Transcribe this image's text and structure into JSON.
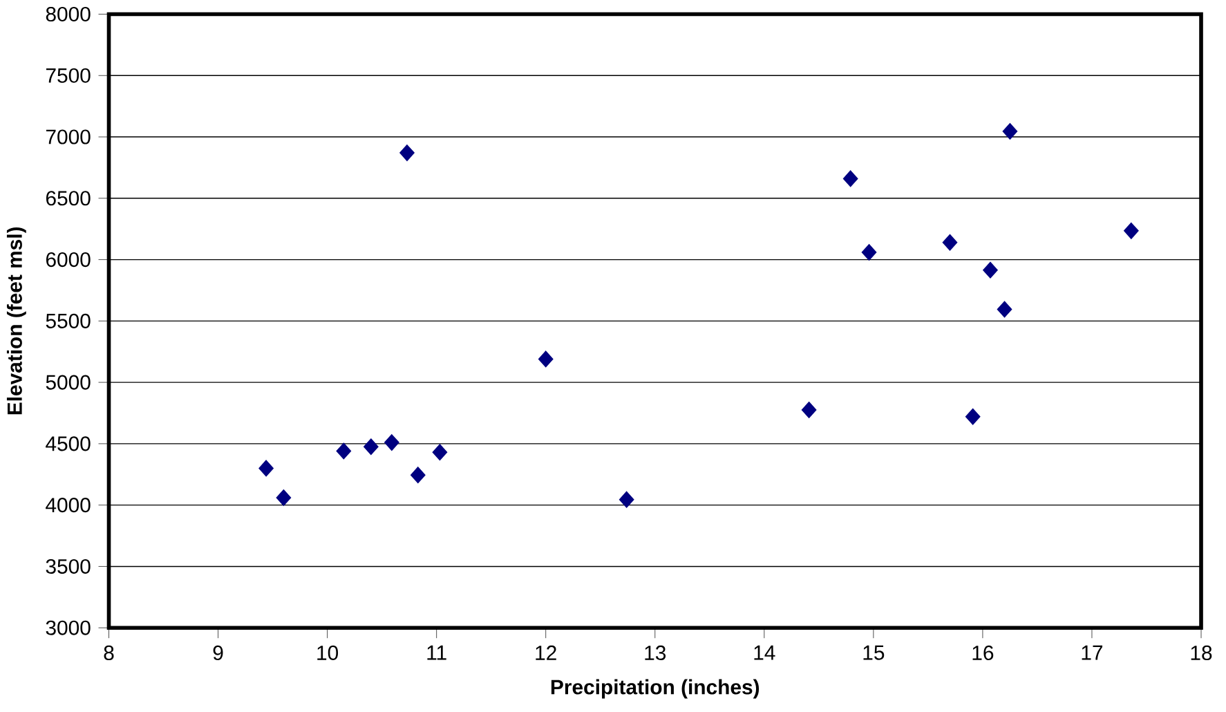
{
  "chart_data": {
    "type": "scatter",
    "xlabel": "Precipitation (inches)",
    "ylabel": "Elevation (feet msl)",
    "x": [
      9.44,
      9.6,
      10.15,
      10.4,
      10.59,
      10.83,
      11.03,
      10.73,
      12.0,
      12.74,
      14.41,
      14.79,
      14.96,
      15.7,
      15.91,
      16.07,
      16.2,
      16.25,
      17.36
    ],
    "series": [
      {
        "color": "#000080",
        "values": [
          4300,
          4060,
          4440,
          4475,
          4510,
          4245,
          4430,
          6870,
          5190,
          4045,
          4775,
          6660,
          6060,
          6140,
          4720,
          5915,
          5595,
          7045,
          6235
        ]
      }
    ],
    "xlim": [
      8,
      18
    ],
    "ylim": [
      3000,
      8000
    ],
    "xticks": [
      8,
      9,
      10,
      11,
      12,
      13,
      14,
      15,
      16,
      17,
      18
    ],
    "yticks": [
      3000,
      3500,
      4000,
      4500,
      5000,
      5500,
      6000,
      6500,
      7000,
      7500,
      8000
    ],
    "grid": "y",
    "marker": "diamond"
  }
}
